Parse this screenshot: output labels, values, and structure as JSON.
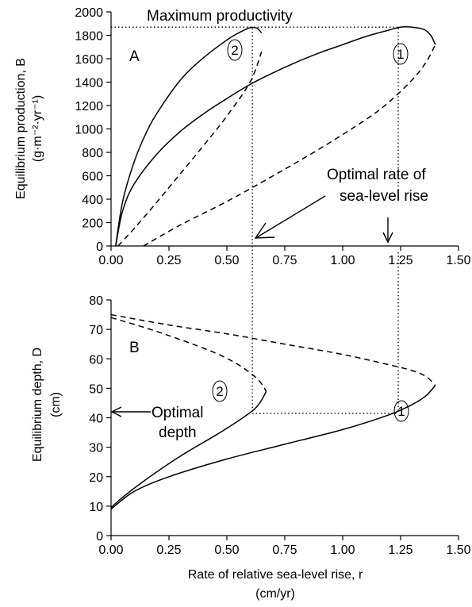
{
  "chart_data": [
    {
      "type": "line",
      "panel_letter": "A",
      "ylabel_line1": "Equilibrium production, B",
      "ylabel_line2": "(g·m⁻²·yr⁻¹)",
      "xlim": [
        0,
        1.5
      ],
      "ylim": [
        0,
        2000
      ],
      "x_ticks": [
        "0.00",
        "0.25",
        "0.50",
        "0.75",
        "1.00",
        "1.25",
        "1.50"
      ],
      "y_ticks": [
        "0",
        "200",
        "400",
        "600",
        "800",
        "1000",
        "1200",
        "1400",
        "1600",
        "1800",
        "2000"
      ],
      "annotations": {
        "max_productivity": "Maximum productivity",
        "optimal_rate_line1": "Optimal rate of",
        "optimal_rate_line2": "sea-level rise"
      },
      "series": [
        {
          "name": "1",
          "style": "solid",
          "x": [
            0.02,
            0.05,
            0.1,
            0.2,
            0.3,
            0.4,
            0.5,
            0.6,
            0.7,
            0.8,
            0.9,
            1.0,
            1.1,
            1.2,
            1.25,
            1.3,
            1.35,
            1.38,
            1.4
          ],
          "y": [
            0,
            300,
            530,
            790,
            980,
            1130,
            1260,
            1380,
            1480,
            1570,
            1650,
            1720,
            1790,
            1845,
            1870,
            1870,
            1850,
            1800,
            1720
          ]
        },
        {
          "name": "1",
          "style": "dashed",
          "x": [
            0.14,
            0.3,
            0.5,
            0.7,
            0.9,
            1.1,
            1.2,
            1.3,
            1.36,
            1.4
          ],
          "y": [
            0,
            180,
            380,
            600,
            830,
            1080,
            1230,
            1420,
            1570,
            1720
          ]
        },
        {
          "name": "2",
          "style": "solid",
          "x": [
            0.02,
            0.05,
            0.1,
            0.15,
            0.2,
            0.3,
            0.4,
            0.5,
            0.55,
            0.6,
            0.63,
            0.65
          ],
          "y": [
            0,
            380,
            720,
            960,
            1140,
            1420,
            1610,
            1760,
            1820,
            1865,
            1860,
            1820
          ]
        },
        {
          "name": "2",
          "style": "dashed",
          "x": [
            0.03,
            0.1,
            0.2,
            0.3,
            0.4,
            0.5,
            0.6,
            0.65
          ],
          "y": [
            0,
            150,
            380,
            620,
            860,
            1110,
            1400,
            1660
          ]
        }
      ],
      "reference_lines": {
        "max_productivity_y": 1870,
        "optimal_rate_x": [
          0.61,
          1.24
        ]
      }
    },
    {
      "type": "line",
      "panel_letter": "B",
      "ylabel_line1": "Equilibrium depth, D",
      "ylabel_line2": "(cm)",
      "xlabel_line1": "Rate of relative sea-level rise, r",
      "xlabel_line2": "(cm/yr)",
      "xlim": [
        0,
        1.5
      ],
      "ylim": [
        0,
        80
      ],
      "x_ticks": [
        "0.00",
        "0.25",
        "0.50",
        "0.75",
        "1.00",
        "1.25",
        "1.50"
      ],
      "y_ticks": [
        "0",
        "10",
        "20",
        "30",
        "40",
        "50",
        "60",
        "70",
        "80"
      ],
      "annotations": {
        "optimal_depth_line1": "Optimal",
        "optimal_depth_line2": "depth"
      },
      "series": [
        {
          "name": "1",
          "style": "solid",
          "x": [
            0.0,
            0.1,
            0.25,
            0.5,
            0.75,
            1.0,
            1.2,
            1.3,
            1.36,
            1.4
          ],
          "y": [
            9,
            15,
            20,
            26,
            31,
            36,
            41,
            44.5,
            47.5,
            51
          ]
        },
        {
          "name": "1",
          "style": "dashed",
          "x": [
            0.0,
            0.25,
            0.5,
            0.75,
            1.0,
            1.2,
            1.3,
            1.36,
            1.4
          ],
          "y": [
            75,
            71.5,
            68.5,
            65,
            61.5,
            58,
            56,
            54,
            51
          ]
        },
        {
          "name": "2",
          "style": "solid",
          "x": [
            0.0,
            0.05,
            0.15,
            0.3,
            0.45,
            0.55,
            0.62,
            0.65,
            0.67
          ],
          "y": [
            9.5,
            13,
            19,
            27,
            34,
            39,
            43,
            46,
            49
          ]
        },
        {
          "name": "2",
          "style": "dashed",
          "x": [
            0.0,
            0.15,
            0.3,
            0.45,
            0.55,
            0.62,
            0.65,
            0.67
          ],
          "y": [
            74,
            70.5,
            66.5,
            62,
            58,
            54,
            51.5,
            49
          ]
        }
      ],
      "reference_lines": {
        "optimal_depth_y": 41.5,
        "optimal_rate_x": [
          0.61,
          1.24
        ]
      }
    }
  ]
}
